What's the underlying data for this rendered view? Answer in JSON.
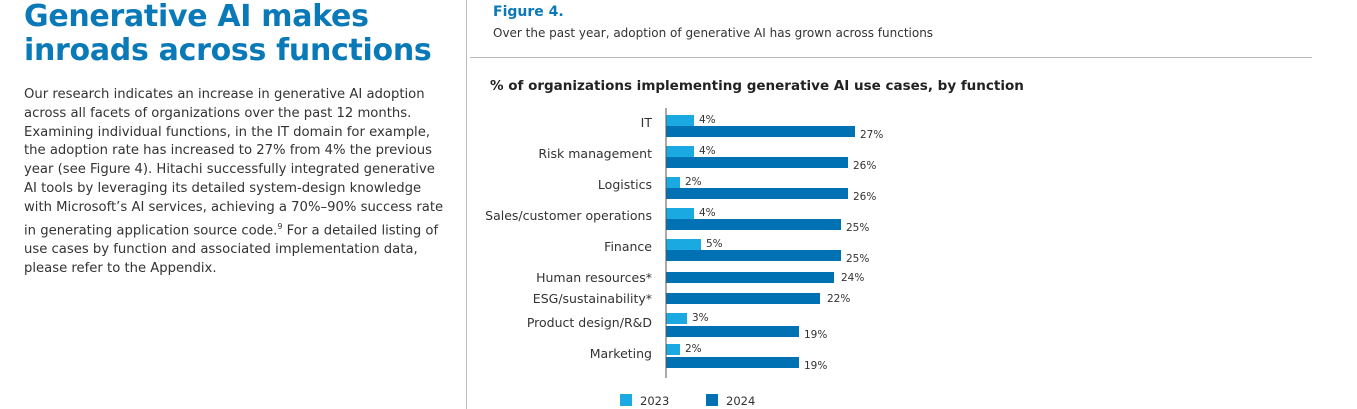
{
  "article": {
    "heading_line1": "Generative AI makes",
    "heading_line2": "inroads across functions",
    "body_before_sup": "Our research indicates an increase in generative AI adoption across all facets of organizations over the past 12 months. Examining individual functions, in the IT domain for example, the adoption rate has increased to 27% from 4% the previous year (see Figure 4). Hitachi successfully integrated generative AI tools by leveraging its detailed system-design knowledge with Microsoft’s AI services, achieving a 70%–90% success rate in generating application source code.",
    "footnote_marker": "9",
    "body_after_sup": " For a detailed listing of use cases by function and associated implementation data, please refer to the Appendix."
  },
  "figure": {
    "label": "Figure 4.",
    "subtitle": "Over the past year, adoption of generative AI has grown across functions"
  },
  "colors": {
    "series_2023": "#1ba9e1",
    "series_2024": "#0071b3",
    "heading": "#0a79b8"
  },
  "chart_data": {
    "type": "bar",
    "orientation": "horizontal",
    "title": "% of organizations implementing generative AI use cases, by function",
    "categories": [
      "IT",
      "Risk management",
      "Logistics",
      "Sales/customer operations",
      "Finance",
      "Human resources*",
      "ESG/sustainability*",
      "Product design/R&D",
      "Marketing"
    ],
    "series": [
      {
        "name": "2023",
        "values": [
          4,
          4,
          2,
          4,
          5,
          null,
          null,
          3,
          2
        ]
      },
      {
        "name": "2024",
        "values": [
          27,
          26,
          26,
          25,
          25,
          24,
          22,
          19,
          19
        ]
      }
    ],
    "value_suffix": "%",
    "legend_position": "bottom",
    "grid": false
  }
}
